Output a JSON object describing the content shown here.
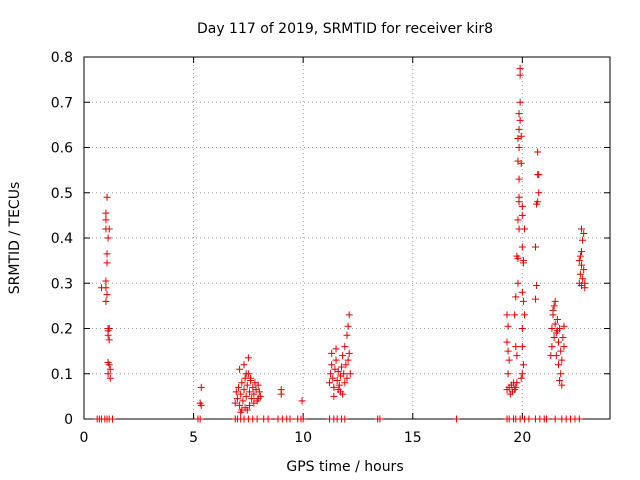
{
  "chart_data": {
    "type": "scatter",
    "title": "Day 117 of 2019, SRMTID for receiver kir8",
    "xlabel": "GPS time / hours",
    "ylabel": "SRMTID / TECUs",
    "xlim": [
      0,
      24
    ],
    "ylim": [
      0,
      0.8
    ],
    "xticks": [
      0,
      5,
      10,
      15,
      20
    ],
    "yticks": [
      0,
      0.1,
      0.2,
      0.3,
      0.4,
      0.5,
      0.6,
      0.7,
      0.8
    ],
    "grid": true,
    "marker": "+",
    "colors": {
      "points": "#e00000",
      "grid": "#a0a0a0",
      "axis": "#000000"
    },
    "series": [
      {
        "name": "SRMTID",
        "points": [
          [
            0.6,
            0
          ],
          [
            0.7,
            0
          ],
          [
            0.8,
            0
          ],
          [
            0.95,
            0
          ],
          [
            1.05,
            0
          ],
          [
            1.15,
            0
          ],
          [
            1.3,
            0
          ],
          [
            0.8,
            0.29
          ],
          [
            1.0,
            0.29
          ],
          [
            1.0,
            0.26
          ],
          [
            1.05,
            0.275
          ],
          [
            1.0,
            0.305
          ],
          [
            1.05,
            0.345
          ],
          [
            1.05,
            0.365
          ],
          [
            1.0,
            0.42
          ],
          [
            1.0,
            0.44
          ],
          [
            1.0,
            0.455
          ],
          [
            1.05,
            0.49
          ],
          [
            1.1,
            0.4
          ],
          [
            1.15,
            0.42
          ],
          [
            1.1,
            0.2
          ],
          [
            1.15,
            0.2
          ],
          [
            1.1,
            0.195
          ],
          [
            1.1,
            0.185
          ],
          [
            1.15,
            0.175
          ],
          [
            1.1,
            0.125
          ],
          [
            1.15,
            0.12
          ],
          [
            1.1,
            0.1
          ],
          [
            1.2,
            0.09
          ],
          [
            1.2,
            0.11
          ],
          [
            5.2,
            0
          ],
          [
            5.3,
            0
          ],
          [
            5.3,
            0.035
          ],
          [
            5.35,
            0.03
          ],
          [
            5.35,
            0.07
          ],
          [
            6.9,
            0
          ],
          [
            7.0,
            0
          ],
          [
            7.15,
            0
          ],
          [
            7.3,
            0
          ],
          [
            7.5,
            0
          ],
          [
            7.7,
            0
          ],
          [
            7.9,
            0
          ],
          [
            6.9,
            0.035
          ],
          [
            6.95,
            0.06
          ],
          [
            7.0,
            0.045
          ],
          [
            7.05,
            0.07
          ],
          [
            7.1,
            0.03
          ],
          [
            7.15,
            0.055
          ],
          [
            7.2,
            0.08
          ],
          [
            7.25,
            0.04
          ],
          [
            7.3,
            0.065
          ],
          [
            7.35,
            0.09
          ],
          [
            7.4,
            0.05
          ],
          [
            7.45,
            0.075
          ],
          [
            7.5,
            0.1
          ],
          [
            7.55,
            0.06
          ],
          [
            7.6,
            0.085
          ],
          [
            7.65,
            0.045
          ],
          [
            7.7,
            0.07
          ],
          [
            7.75,
            0.055
          ],
          [
            7.8,
            0.08
          ],
          [
            7.85,
            0.065
          ],
          [
            7.9,
            0.04
          ],
          [
            7.95,
            0.075
          ],
          [
            8.0,
            0.06
          ],
          [
            8.05,
            0.05
          ],
          [
            7.1,
            0.11
          ],
          [
            7.3,
            0.12
          ],
          [
            7.5,
            0.135
          ],
          [
            7.4,
            0.1
          ],
          [
            7.6,
            0.09
          ],
          [
            7.2,
            0.02
          ],
          [
            7.35,
            0.025
          ],
          [
            7.55,
            0.03
          ],
          [
            7.75,
            0.035
          ],
          [
            7.95,
            0.045
          ],
          [
            7.15,
            0.015
          ],
          [
            7.45,
            0.02
          ],
          [
            8.2,
            0
          ],
          [
            8.4,
            0
          ],
          [
            9.0,
            0.055
          ],
          [
            9.0,
            0.065
          ],
          [
            8.85,
            0
          ],
          [
            9.05,
            0
          ],
          [
            9.25,
            0
          ],
          [
            9.4,
            0
          ],
          [
            9.75,
            0
          ],
          [
            9.9,
            0
          ],
          [
            10.0,
            0
          ],
          [
            9.95,
            0.04
          ],
          [
            11.2,
            0
          ],
          [
            11.4,
            0
          ],
          [
            11.55,
            0
          ],
          [
            11.75,
            0
          ],
          [
            11.9,
            0
          ],
          [
            11.2,
            0.08
          ],
          [
            11.25,
            0.1
          ],
          [
            11.3,
            0.12
          ],
          [
            11.35,
            0.09
          ],
          [
            11.4,
            0.07
          ],
          [
            11.45,
            0.11
          ],
          [
            11.5,
            0.13
          ],
          [
            11.55,
            0.085
          ],
          [
            11.6,
            0.105
          ],
          [
            11.65,
            0.075
          ],
          [
            11.7,
            0.095
          ],
          [
            11.75,
            0.115
          ],
          [
            11.8,
            0.14
          ],
          [
            11.85,
            0.1
          ],
          [
            11.9,
            0.08
          ],
          [
            11.95,
            0.12
          ],
          [
            12.0,
            0.09
          ],
          [
            12.05,
            0.13
          ],
          [
            11.3,
            0.145
          ],
          [
            11.5,
            0.155
          ],
          [
            11.7,
            0.06
          ],
          [
            11.9,
            0.16
          ],
          [
            12.0,
            0.185
          ],
          [
            12.05,
            0.205
          ],
          [
            12.1,
            0.23
          ],
          [
            12.15,
            0.1
          ],
          [
            11.4,
            0.05
          ],
          [
            11.6,
            0.065
          ],
          [
            11.8,
            0.055
          ],
          [
            12.1,
            0.145
          ],
          [
            13.4,
            0
          ],
          [
            13.5,
            0
          ],
          [
            17.0,
            0
          ],
          [
            19.3,
            0
          ],
          [
            19.4,
            0
          ],
          [
            19.6,
            0
          ],
          [
            19.7,
            0
          ],
          [
            19.9,
            0
          ],
          [
            20.1,
            0
          ],
          [
            20.3,
            0
          ],
          [
            20.6,
            0
          ],
          [
            20.8,
            0
          ],
          [
            21.0,
            0
          ],
          [
            21.1,
            0
          ],
          [
            21.5,
            0
          ],
          [
            21.8,
            0
          ],
          [
            22.0,
            0
          ],
          [
            22.2,
            0
          ],
          [
            22.4,
            0
          ],
          [
            22.6,
            0
          ],
          [
            19.3,
            0.23
          ],
          [
            19.35,
            0.205
          ],
          [
            19.3,
            0.17
          ],
          [
            19.35,
            0.15
          ],
          [
            19.4,
            0.13
          ],
          [
            19.35,
            0.1
          ],
          [
            19.3,
            0.065
          ],
          [
            19.4,
            0.07
          ],
          [
            19.45,
            0.055
          ],
          [
            19.5,
            0.075
          ],
          [
            19.55,
            0.06
          ],
          [
            19.6,
            0.08
          ],
          [
            19.65,
            0.065
          ],
          [
            19.7,
            0.07
          ],
          [
            19.75,
            0.08
          ],
          [
            19.7,
            0.16
          ],
          [
            19.75,
            0.14
          ],
          [
            19.65,
            0.23
          ],
          [
            19.7,
            0.27
          ],
          [
            19.75,
            0.36
          ],
          [
            19.8,
            0.3
          ],
          [
            19.8,
            0.355
          ],
          [
            19.85,
            0.42
          ],
          [
            19.8,
            0.44
          ],
          [
            19.85,
            0.48
          ],
          [
            19.85,
            0.49
          ],
          [
            19.85,
            0.53
          ],
          [
            19.8,
            0.57
          ],
          [
            19.85,
            0.6
          ],
          [
            19.8,
            0.62
          ],
          [
            19.85,
            0.64
          ],
          [
            19.9,
            0.66
          ],
          [
            19.85,
            0.675
          ],
          [
            19.9,
            0.7
          ],
          [
            19.9,
            0.76
          ],
          [
            19.9,
            0.775
          ],
          [
            19.95,
            0.625
          ],
          [
            19.95,
            0.565
          ],
          [
            20.0,
            0.47
          ],
          [
            20.0,
            0.45
          ],
          [
            20.0,
            0.38
          ],
          [
            20.05,
            0.35
          ],
          [
            20.05,
            0.345
          ],
          [
            20.0,
            0.28
          ],
          [
            20.05,
            0.26
          ],
          [
            20.1,
            0.23
          ],
          [
            20.0,
            0.2
          ],
          [
            20.0,
            0.16
          ],
          [
            20.05,
            0.12
          ],
          [
            20.0,
            0.1
          ],
          [
            19.95,
            0.09
          ],
          [
            20.1,
            0.42
          ],
          [
            20.6,
            0.265
          ],
          [
            20.65,
            0.295
          ],
          [
            20.6,
            0.38
          ],
          [
            20.65,
            0.475
          ],
          [
            20.7,
            0.48
          ],
          [
            20.7,
            0.54
          ],
          [
            20.75,
            0.54
          ],
          [
            20.7,
            0.59
          ],
          [
            20.75,
            0.5
          ],
          [
            21.3,
            0.14
          ],
          [
            21.35,
            0.2
          ],
          [
            21.4,
            0.23
          ],
          [
            21.45,
            0.25
          ],
          [
            21.5,
            0.26
          ],
          [
            21.4,
            0.24
          ],
          [
            21.5,
            0.21
          ],
          [
            21.55,
            0.19
          ],
          [
            21.6,
            0.22
          ],
          [
            21.65,
            0.17
          ],
          [
            21.7,
            0.2
          ],
          [
            21.75,
            0.15
          ],
          [
            21.8,
            0.13
          ],
          [
            21.85,
            0.18
          ],
          [
            21.9,
            0.16
          ],
          [
            21.55,
            0.14
          ],
          [
            21.65,
            0.12
          ],
          [
            21.75,
            0.1
          ],
          [
            21.8,
            0.075
          ],
          [
            21.7,
            0.085
          ],
          [
            21.9,
            0.205
          ],
          [
            21.45,
            0.18
          ],
          [
            21.35,
            0.16
          ],
          [
            21.6,
            0.195
          ],
          [
            22.6,
            0.3
          ],
          [
            22.65,
            0.32
          ],
          [
            22.7,
            0.34
          ],
          [
            22.65,
            0.36
          ],
          [
            22.7,
            0.37
          ],
          [
            22.75,
            0.395
          ],
          [
            22.8,
            0.41
          ],
          [
            22.7,
            0.42
          ],
          [
            22.75,
            0.31
          ],
          [
            22.8,
            0.33
          ],
          [
            22.85,
            0.29
          ],
          [
            22.7,
            0.295
          ],
          [
            22.6,
            0.35
          ],
          [
            22.85,
            0.3
          ]
        ]
      }
    ]
  }
}
